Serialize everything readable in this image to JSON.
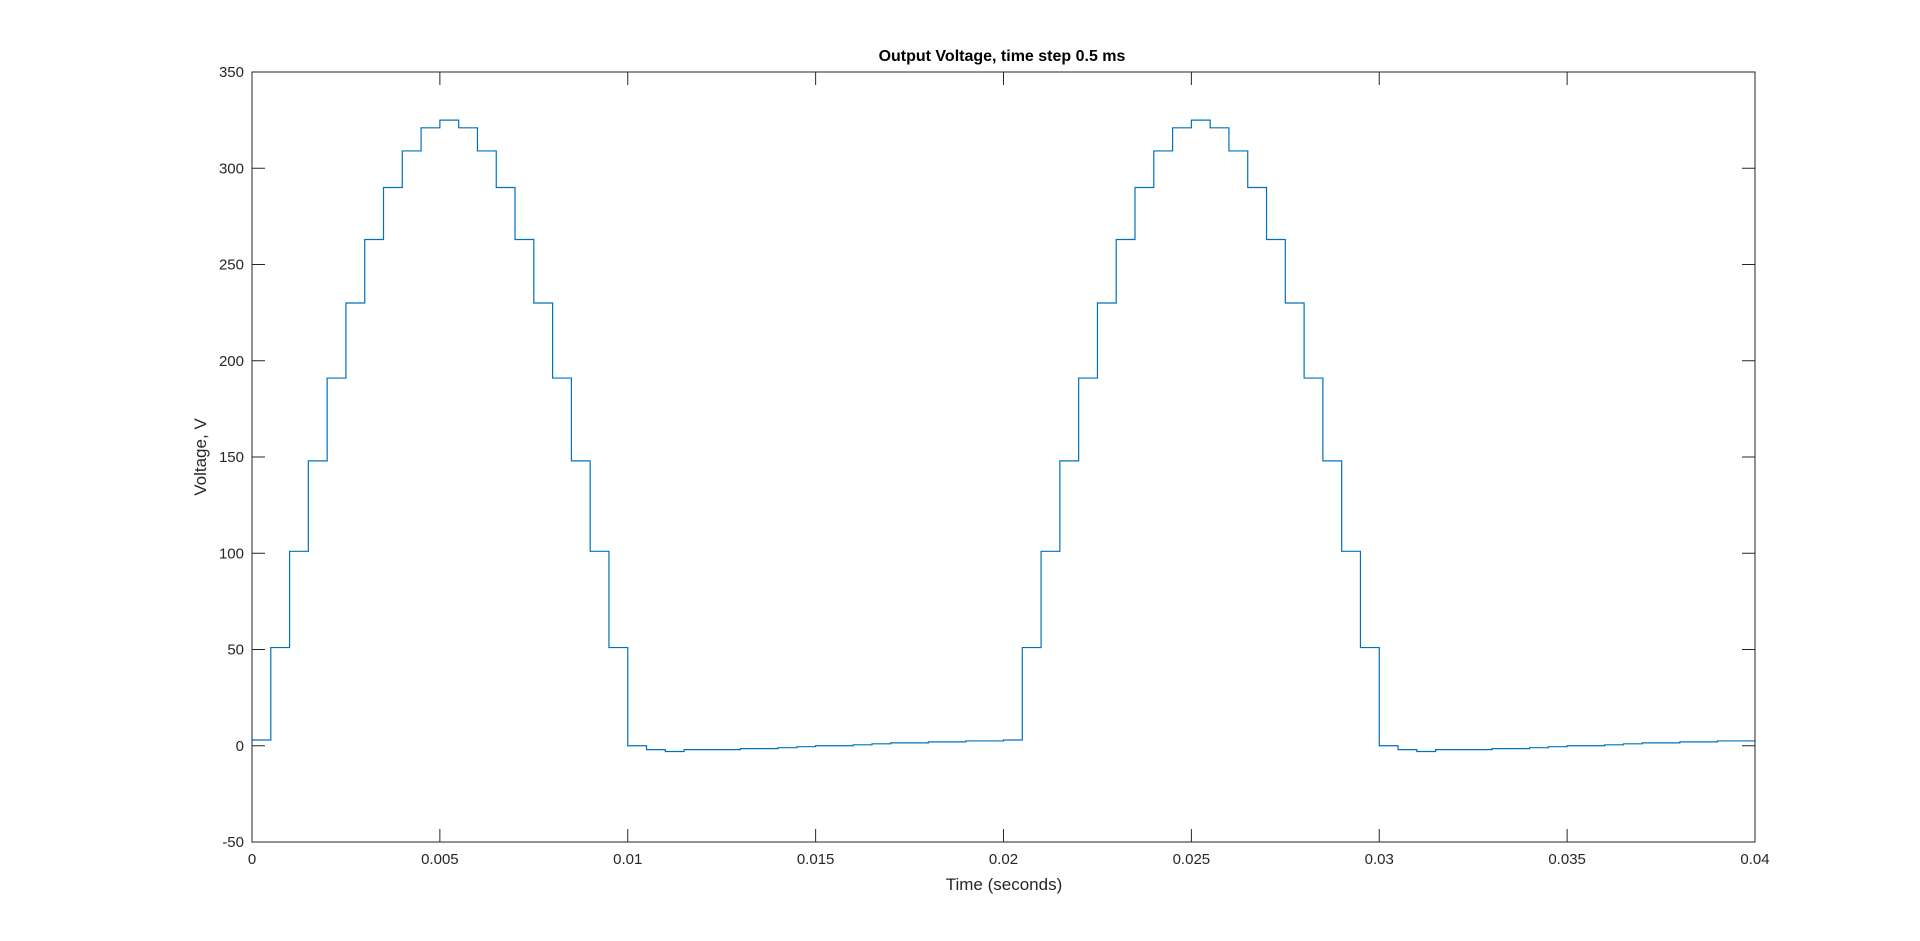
{
  "chart_data": {
    "type": "line",
    "title": "Output Voltage, time step 0.5 ms",
    "xlabel": "Time (seconds)",
    "ylabel": "Voltage, V",
    "xlim": [
      0,
      0.04
    ],
    "ylim": [
      -50,
      350
    ],
    "xticks": [
      0,
      0.005,
      0.01,
      0.015,
      0.02,
      0.025,
      0.03,
      0.035,
      0.04
    ],
    "xtick_labels": [
      "0",
      "0.005",
      "0.01",
      "0.015",
      "0.02",
      "0.025",
      "0.03",
      "0.035",
      "0.04"
    ],
    "yticks": [
      -50,
      0,
      50,
      100,
      150,
      200,
      250,
      300,
      350
    ],
    "ytick_labels": [
      "-50",
      "0",
      "50",
      "100",
      "150",
      "200",
      "250",
      "300",
      "350"
    ],
    "grid": false,
    "line_style": "stairs",
    "series_color": "#0072BD",
    "series": [
      {
        "x": [
          0,
          0.0005,
          0.001,
          0.0015,
          0.002,
          0.0025,
          0.003,
          0.0035,
          0.004,
          0.0045,
          0.005,
          0.0055,
          0.006,
          0.0065,
          0.007,
          0.0075,
          0.008,
          0.0085,
          0.009,
          0.0095,
          0.01,
          0.0105,
          0.011,
          0.0115,
          0.012,
          0.0125,
          0.013,
          0.0135,
          0.014,
          0.0145,
          0.015,
          0.0155,
          0.016,
          0.0165,
          0.017,
          0.0175,
          0.018,
          0.0185,
          0.019,
          0.0195,
          0.02,
          0.0205,
          0.021,
          0.0215,
          0.022,
          0.0225,
          0.023,
          0.0235,
          0.024,
          0.0245,
          0.025,
          0.0255,
          0.026,
          0.0265,
          0.027,
          0.0275,
          0.028,
          0.0285,
          0.029,
          0.0295,
          0.03,
          0.0305,
          0.031,
          0.0315,
          0.032,
          0.0325,
          0.033,
          0.0335,
          0.034,
          0.0345,
          0.035,
          0.0355,
          0.036,
          0.0365,
          0.037,
          0.0375,
          0.038,
          0.0385,
          0.039,
          0.0395,
          0.04
        ],
        "y": [
          3,
          51,
          101,
          148,
          191,
          230,
          263,
          290,
          309,
          321,
          325,
          321,
          309,
          290,
          263,
          230,
          191,
          148,
          101,
          51,
          0,
          -2,
          -3,
          -2,
          -2,
          -2,
          -1.5,
          -1.5,
          -1,
          -0.5,
          0,
          0,
          0.5,
          1,
          1.5,
          1.5,
          2,
          2,
          2.5,
          2.5,
          3,
          51,
          101,
          148,
          191,
          230,
          263,
          290,
          309,
          321,
          325,
          321,
          309,
          290,
          263,
          230,
          191,
          148,
          101,
          51,
          0,
          -2,
          -3,
          -2,
          -2,
          -2,
          -1.5,
          -1.5,
          -1,
          -0.5,
          0,
          0,
          0.5,
          1,
          1.5,
          1.5,
          2,
          2,
          2.5,
          2.5,
          3
        ]
      }
    ]
  }
}
